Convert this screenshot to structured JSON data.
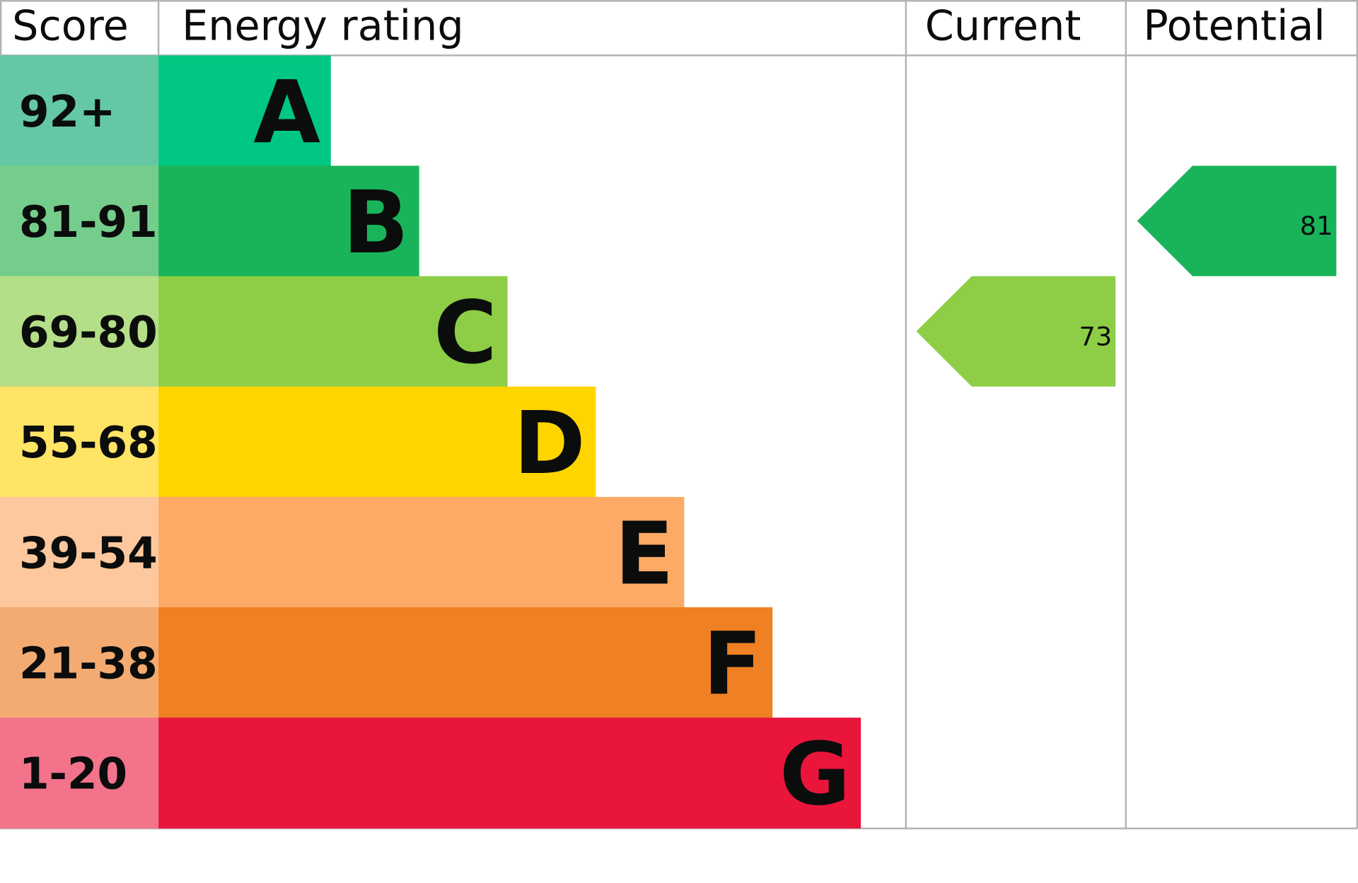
{
  "chart_data": {
    "type": "bar",
    "headers": {
      "score": "Score",
      "rating": "Energy rating",
      "current": "Current",
      "potential": "Potential"
    },
    "bands": [
      {
        "letter": "A",
        "range": "92+",
        "color": "#00c781",
        "light": "#64c8a4"
      },
      {
        "letter": "B",
        "range": "81-91",
        "color": "#19b459",
        "light": "#75cd8b"
      },
      {
        "letter": "C",
        "range": "69-80",
        "color": "#8dce46",
        "light": "#b4de87"
      },
      {
        "letter": "D",
        "range": "55-68",
        "color": "#ffd500",
        "light": "#ffe466"
      },
      {
        "letter": "E",
        "range": "39-54",
        "color": "#fcaa65",
        "light": "#fdc89d"
      },
      {
        "letter": "F",
        "range": "21-38",
        "color": "#ef8023",
        "light": "#f4ab71"
      },
      {
        "letter": "G",
        "range": "1-20",
        "color": "#e9153b",
        "light": "#f2738a"
      }
    ],
    "current": {
      "value": 73,
      "band": "C",
      "label": "73"
    },
    "potential": {
      "value": 81,
      "band": "B",
      "label": "81"
    }
  }
}
